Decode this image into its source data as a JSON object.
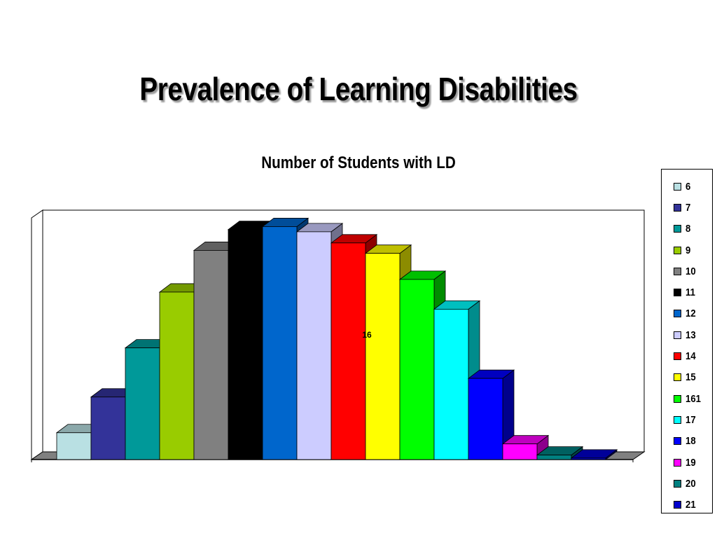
{
  "slide": {
    "title": "Prevalence of Learning Disabilities"
  },
  "chart_data": {
    "type": "bar",
    "style": "3d-column",
    "title": "Number of Students with LD",
    "categories": [
      "6",
      "7",
      "8",
      "9",
      "10",
      "11",
      "12",
      "13",
      "14",
      "15",
      "161",
      "17",
      "18",
      "19",
      "20",
      "21"
    ],
    "values": [
      36,
      84,
      150,
      225,
      281,
      309,
      313,
      306,
      291,
      277,
      242,
      202,
      109,
      21,
      6,
      2
    ],
    "colors": [
      "#b9e0e3",
      "#333399",
      "#009999",
      "#99cc00",
      "#808080",
      "#000000",
      "#0066cc",
      "#ccccff",
      "#ff0000",
      "#ffff00",
      "#00ff00",
      "#00ffff",
      "#0000ff",
      "#ff00ff",
      "#008080",
      "#0000cc"
    ],
    "annotation": "16",
    "ylim": [
      0,
      320
    ],
    "axes_shown": false,
    "grid": false,
    "legend": {
      "position": "right",
      "entries": [
        "6",
        "7",
        "8",
        "9",
        "10",
        "11",
        "12",
        "13",
        "14",
        "15",
        "161",
        "17",
        "18",
        "19",
        "20",
        "21"
      ]
    }
  }
}
